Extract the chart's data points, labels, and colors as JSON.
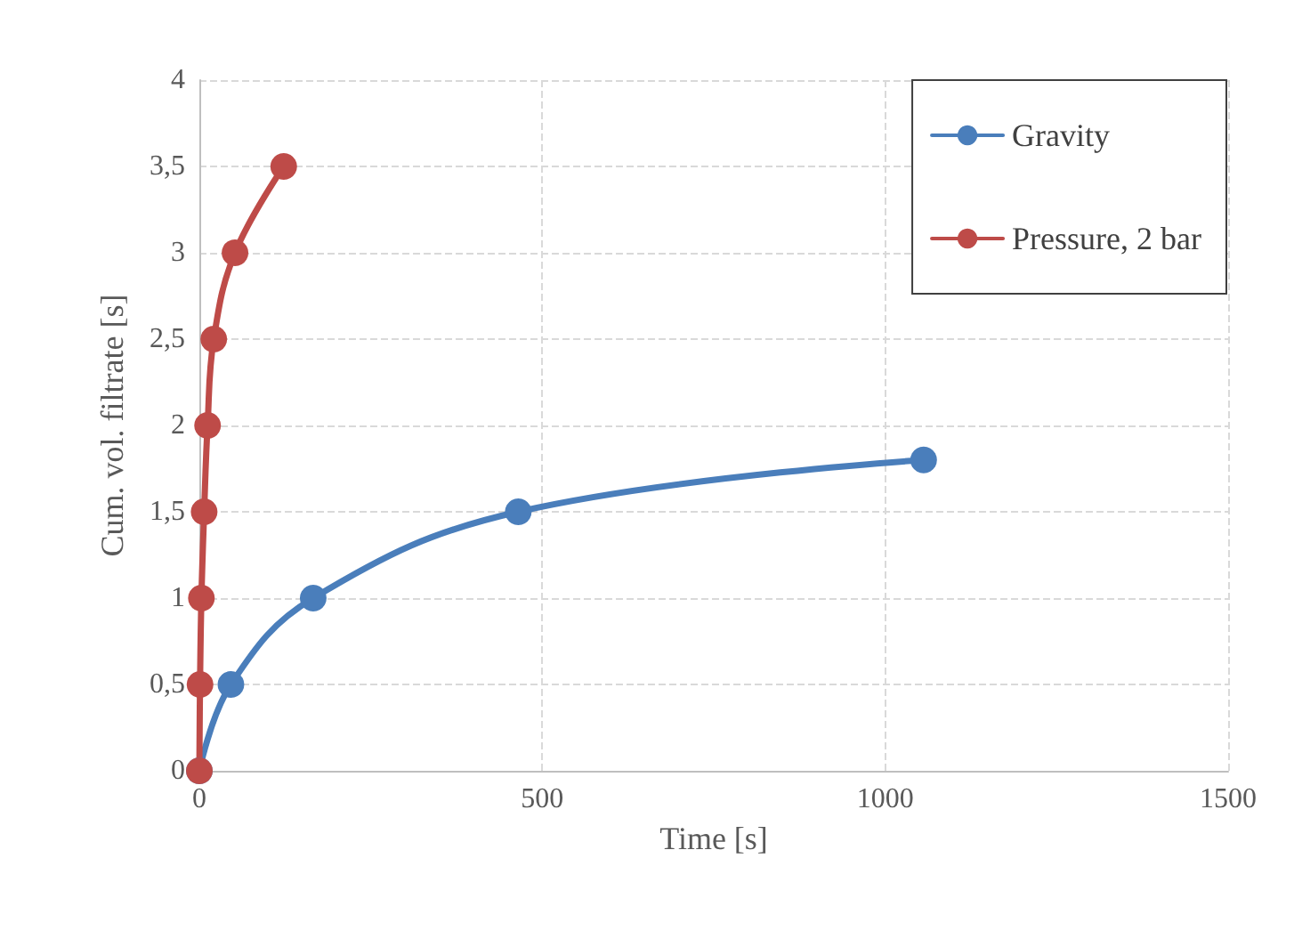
{
  "chart_data": {
    "type": "line",
    "xlabel": "Time [s]",
    "ylabel": "Cum. vol. filtrate [s]",
    "xlim": [
      0,
      1500
    ],
    "xticks": [
      0,
      500,
      1000,
      1500
    ],
    "ylim": [
      0,
      4
    ],
    "yticks": [
      0,
      {
        "value": 0.5,
        "label": "0,5"
      },
      1,
      {
        "value": 1.5,
        "label": "1,5"
      },
      2,
      {
        "value": 2.5,
        "label": "2,5"
      },
      3,
      {
        "value": 3.5,
        "label": "3,5"
      },
      4
    ],
    "grid": true,
    "legend": "top right",
    "marker": "circle",
    "line_style": "solid",
    "series": [
      {
        "name": "Gravity",
        "color": "#4a7ebb",
        "x": [
          0,
          46,
          166,
          465,
          1056
        ],
        "values": [
          0,
          0.5,
          1,
          1.5,
          1.8
        ]
      },
      {
        "name": "Pressure, 2 bar",
        "color": "#be4b48",
        "x": [
          0,
          1,
          3,
          7,
          12,
          21,
          52,
          123
        ],
        "values": [
          0,
          0.5,
          1,
          1.5,
          2,
          2.5,
          3,
          3.5
        ]
      }
    ]
  }
}
